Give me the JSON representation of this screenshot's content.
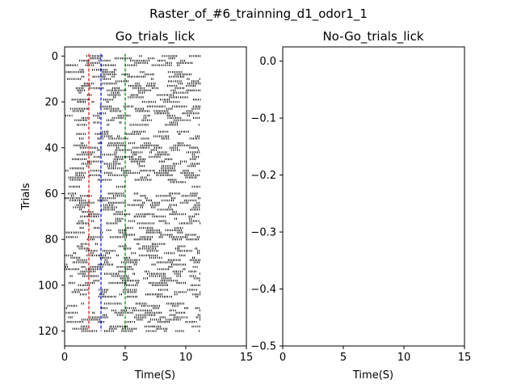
{
  "figure": {
    "title": "Raster_of_#6_trainning_d1_odor1_1"
  },
  "chart_data": [
    {
      "type": "scatter",
      "marker": "vertical-tick",
      "title": "Go_trials_lick",
      "xlabel": "Time(S)",
      "ylabel": "Trials",
      "xlim": [
        0,
        15
      ],
      "ylim": [
        126.5,
        -4
      ],
      "y_inverted": true,
      "xticks": [
        0,
        5,
        10,
        15
      ],
      "yticks": [
        0,
        20,
        40,
        60,
        80,
        100,
        120
      ],
      "grid": false,
      "trial_count": 121,
      "lick_time_range": [
        0,
        11.2
      ],
      "vlines": [
        {
          "x": 2,
          "color": "#ff0000",
          "style": "dashed"
        },
        {
          "x": 3,
          "color": "#0000ff",
          "style": "dashed"
        },
        {
          "x": 5,
          "color": "#008000",
          "style": "dashed"
        }
      ],
      "vline_y_range": [
        -1,
        120
      ],
      "raster_color": "#000000"
    },
    {
      "type": "scatter",
      "title": "No-Go_trials_lick",
      "xlabel": "Time(S)",
      "ylabel": "",
      "xlim": [
        0,
        15
      ],
      "ylim": [
        -0.5,
        0.025
      ],
      "xticks": [
        0,
        5,
        10,
        15
      ],
      "yticks": [
        0.0,
        -0.1,
        -0.2,
        -0.3,
        -0.4,
        -0.5
      ],
      "ytick_labels": [
        "0.0",
        "−0.1",
        "−0.2",
        "−0.3",
        "−0.4",
        "−0.5"
      ],
      "grid": false,
      "points": []
    }
  ]
}
